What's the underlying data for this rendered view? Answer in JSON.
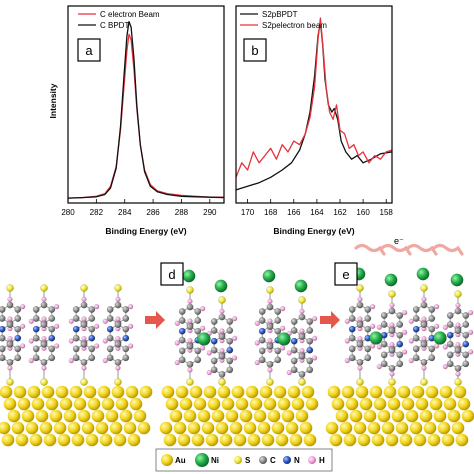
{
  "colors": {
    "electron_beam": "#e8323c",
    "bpdt": "#111111",
    "gold": "#f5d817",
    "nickel": "#22b24c",
    "sulfur": "#f0e63c",
    "carbon": "#8c8c8c",
    "nitrogen": "#2a55c8",
    "hydrogen": "#f2a7dd",
    "arrow": "#e4574a"
  },
  "chart_data": [
    {
      "type": "line",
      "panel": "a",
      "xlabel": "Binding Energy (eV)",
      "ylabel": "Intensity",
      "xlim": [
        280,
        291
      ],
      "x_reversed": false,
      "xticks": [
        "280",
        "282",
        "284",
        "286",
        "288",
        "290"
      ],
      "legend": "top-left",
      "series": [
        {
          "name": "C electron Beam",
          "color": "#e8323c",
          "x": [
            280,
            281,
            282,
            282.6,
            283.0,
            283.4,
            283.7,
            283.95,
            284.15,
            284.3,
            284.45,
            284.65,
            284.85,
            285.1,
            285.4,
            285.8,
            286.3,
            287,
            288,
            289,
            290,
            291
          ],
          "y": [
            0.005,
            0.008,
            0.015,
            0.03,
            0.07,
            0.18,
            0.38,
            0.62,
            0.82,
            0.91,
            0.88,
            0.72,
            0.5,
            0.3,
            0.16,
            0.08,
            0.045,
            0.03,
            0.02,
            0.015,
            0.01,
            0.01
          ]
        },
        {
          "name": "C BPDT",
          "color": "#111111",
          "x": [
            280,
            281,
            282,
            282.6,
            283.0,
            283.4,
            283.7,
            283.95,
            284.15,
            284.3,
            284.45,
            284.65,
            284.85,
            285.1,
            285.4,
            285.8,
            286.3,
            287,
            288,
            289,
            290,
            291
          ],
          "y": [
            0.005,
            0.008,
            0.012,
            0.025,
            0.06,
            0.17,
            0.4,
            0.68,
            0.9,
            0.98,
            0.95,
            0.78,
            0.52,
            0.3,
            0.15,
            0.07,
            0.04,
            0.025,
            0.015,
            0.012,
            0.01,
            0.008
          ]
        }
      ]
    },
    {
      "type": "line",
      "panel": "b",
      "xlabel": "Binding Energy (eV)",
      "xlim": [
        171,
        157.5
      ],
      "x_reversed": true,
      "xticks": [
        "170",
        "168",
        "166",
        "164",
        "162",
        "160",
        "158"
      ],
      "legend": "top-left",
      "series": [
        {
          "name": "S2pBPDT",
          "color": "#111111",
          "x": [
            171,
            170,
            169,
            168,
            167,
            166.2,
            165.5,
            165,
            164.6,
            164.2,
            163.9,
            163.7,
            163.5,
            163.3,
            163.0,
            162.7,
            162.5,
            162.2,
            161.9,
            161.5,
            161,
            160.5,
            160,
            159.3,
            158.5,
            157.5
          ],
          "y": [
            0.05,
            0.07,
            0.09,
            0.12,
            0.16,
            0.2,
            0.27,
            0.36,
            0.48,
            0.68,
            0.9,
            0.98,
            0.85,
            0.66,
            0.52,
            0.48,
            0.5,
            0.44,
            0.32,
            0.26,
            0.22,
            0.24,
            0.2,
            0.22,
            0.25,
            0.26
          ]
        },
        {
          "name": "S2pelectron beam",
          "color": "#e8323c",
          "x": [
            171,
            170.5,
            170,
            169.5,
            169,
            168.5,
            168,
            167.5,
            167,
            166.5,
            166,
            165.5,
            165,
            164.6,
            164.2,
            163.9,
            163.7,
            163.5,
            163.2,
            162.9,
            162.6,
            162.3,
            162.0,
            161.6,
            161.2,
            160.8,
            160.4,
            160,
            159.5,
            159,
            158.5,
            158,
            157.5
          ],
          "y": [
            0.12,
            0.2,
            0.16,
            0.26,
            0.2,
            0.24,
            0.28,
            0.22,
            0.3,
            0.26,
            0.32,
            0.3,
            0.36,
            0.45,
            0.62,
            0.88,
            1.0,
            0.86,
            0.62,
            0.48,
            0.44,
            0.52,
            0.38,
            0.36,
            0.28,
            0.3,
            0.24,
            0.26,
            0.2,
            0.24,
            0.22,
            0.26,
            0.27
          ]
        }
      ]
    }
  ],
  "illustration": {
    "panel_labels": [
      "d",
      "e"
    ],
    "electron_label": "e⁻",
    "legend": [
      "Au",
      "Ni",
      "S",
      "C",
      "N",
      "H"
    ]
  }
}
